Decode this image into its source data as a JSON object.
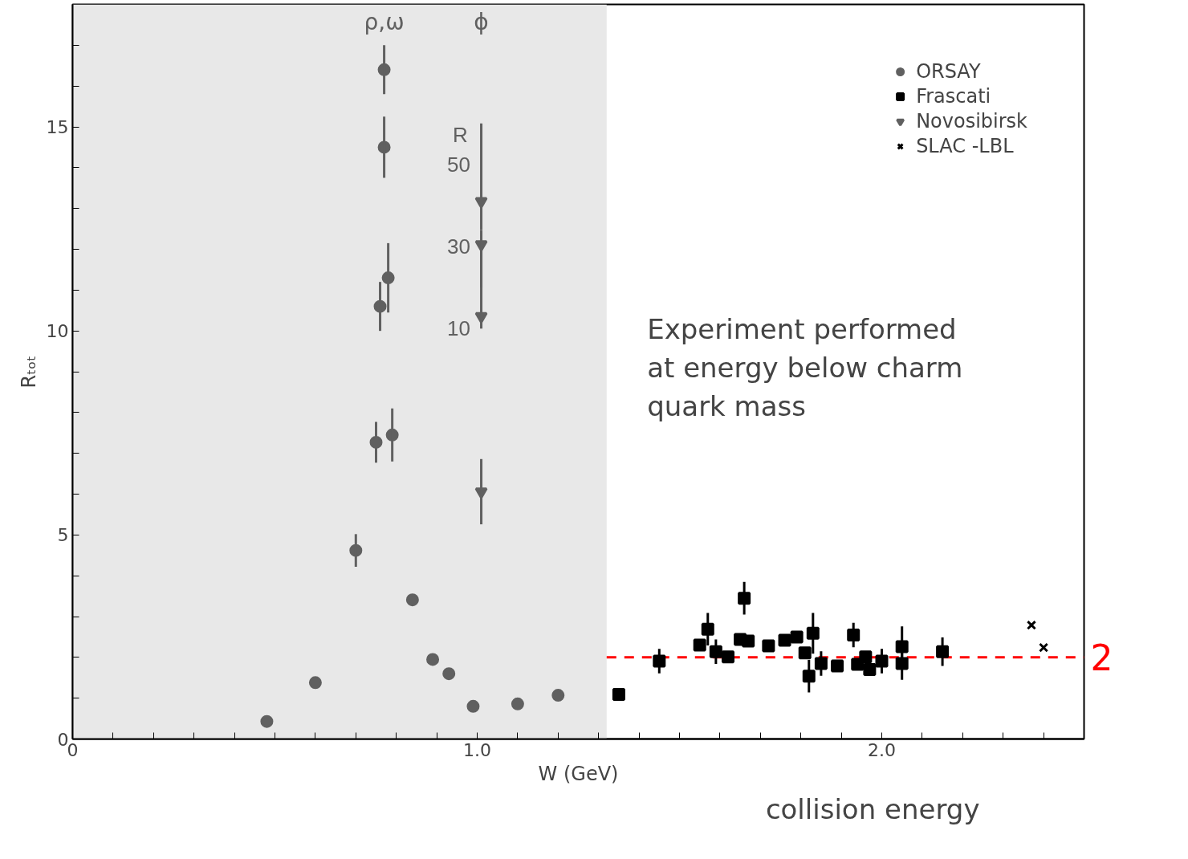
{
  "chart_data": {
    "type": "scatter",
    "xlabel": "W (GeV)",
    "ylabel": "Rₜₒₜ",
    "y2label": "R",
    "xlim": [
      0,
      2.5
    ],
    "ylim": [
      0,
      18
    ],
    "y2lim": [
      -90,
      89
    ],
    "xticks": [
      0,
      {
        "value": 0.1,
        "label": null
      },
      {
        "value": 0.2,
        "label": null
      },
      {
        "value": 0.3,
        "label": null
      },
      {
        "value": 0.4,
        "label": null
      },
      {
        "value": 0.5,
        "label": null
      },
      {
        "value": 0.6,
        "label": null
      },
      {
        "value": 0.7,
        "label": null
      },
      {
        "value": 0.8,
        "label": null
      },
      {
        "value": 0.9,
        "label": null
      },
      {
        "value": 1,
        "label": "1.0"
      },
      {
        "value": 1.1,
        "label": null
      },
      {
        "value": 1.2,
        "label": null
      },
      {
        "value": 1.3,
        "label": null
      },
      {
        "value": 1.4,
        "label": null
      },
      {
        "value": 1.5,
        "label": null
      },
      {
        "value": 1.6,
        "label": null
      },
      {
        "value": 1.7,
        "label": null
      },
      {
        "value": 1.8,
        "label": null
      },
      {
        "value": 1.9,
        "label": null
      },
      {
        "value": 2,
        "label": "2.0"
      },
      {
        "value": 2.1,
        "label": null
      },
      {
        "value": 2.2,
        "label": null
      },
      {
        "value": 2.3,
        "label": null
      },
      {
        "value": 2.4,
        "label": null
      }
    ],
    "yticks": [
      0,
      {
        "value": 1,
        "label": null
      },
      {
        "value": 2,
        "label": null
      },
      {
        "value": 3,
        "label": null
      },
      {
        "value": 4,
        "label": null
      },
      5,
      {
        "value": 6,
        "label": null
      },
      {
        "value": 7,
        "label": null
      },
      {
        "value": 8,
        "label": null
      },
      {
        "value": 9,
        "label": null
      },
      10,
      {
        "value": 11,
        "label": null
      },
      {
        "value": 12,
        "label": null
      },
      {
        "value": 13,
        "label": null
      },
      {
        "value": 14,
        "label": null
      },
      15,
      {
        "value": 16,
        "label": null
      },
      {
        "value": 17,
        "label": null
      }
    ],
    "y2ticks": [
      10,
      30,
      50
    ],
    "grid": false,
    "legend": "top right",
    "series": [
      {
        "name": "ORSAY",
        "marker": "circle",
        "color": "#606060",
        "x": [
          0.48,
          0.6,
          0.7,
          0.75,
          0.79,
          0.76,
          0.78,
          0.77,
          0.77,
          0.84,
          0.89,
          0.93,
          0.99,
          1.1,
          1.2
        ],
        "values": [
          0.43,
          1.38,
          4.62,
          7.27,
          7.45,
          10.6,
          11.3,
          14.5,
          16.4,
          3.41,
          1.95,
          1.6,
          0.8,
          0.86,
          1.07
        ],
        "errors": [
          null,
          null,
          0.4,
          0.5,
          0.65,
          0.6,
          0.85,
          0.75,
          0.6,
          null,
          null,
          null,
          null,
          null,
          null
        ]
      },
      {
        "name": "Frascati",
        "marker": "square",
        "color": "#000000",
        "x": [
          1.35,
          1.45,
          1.55,
          1.57,
          1.59,
          1.62,
          1.65,
          1.66,
          1.67,
          1.72,
          1.76,
          1.79,
          1.81,
          1.82,
          1.83,
          1.85,
          1.89,
          1.93,
          1.94,
          1.96,
          1.97,
          2.0,
          2.05,
          2.05,
          2.15
        ],
        "values": [
          1.09,
          1.91,
          2.3,
          2.69,
          2.14,
          2.01,
          2.44,
          3.45,
          2.4,
          2.28,
          2.42,
          2.5,
          2.11,
          1.54,
          2.59,
          1.85,
          1.79,
          2.55,
          1.83,
          2.01,
          1.7,
          1.91,
          2.26,
          1.85,
          2.14
        ],
        "errors": [
          null,
          0.3,
          null,
          0.4,
          0.3,
          null,
          null,
          0.4,
          null,
          null,
          null,
          null,
          null,
          0.4,
          0.5,
          0.3,
          null,
          0.3,
          null,
          null,
          null,
          0.3,
          0.5,
          0.4,
          0.35
        ]
      },
      {
        "name": "Novosibirsk",
        "marker": "triangle",
        "color": "#606060",
        "axis": "y2",
        "x": [
          1.01,
          1.01,
          1.01
        ],
        "values": [
          41,
          30.5,
          13
        ],
        "errors": [
          [
            34,
            60
          ],
          [
            20,
            34
          ],
          [
            10,
            30
          ]
        ]
      },
      {
        "marker": "triangle",
        "color": "#606060",
        "x": [
          1.01
        ],
        "values": [
          6.06
        ],
        "errors": [
          0.8
        ]
      },
      {
        "name": "SLAC -LBL",
        "marker": "cross",
        "color": "#000000",
        "x": [
          2.37,
          2.4
        ],
        "values": [
          2.79,
          2.24
        ]
      }
    ],
    "bands": [
      {
        "axis": "x",
        "from": 0,
        "to": 1.32,
        "color": "#e8e8e8",
        "label": "Experiment performed\nat energy below charm\nquark mass"
      }
    ],
    "ref_lines": [
      {
        "axis": "y",
        "value": 2,
        "label": "2",
        "color": "#ff0000",
        "line_style": "dashed"
      }
    ],
    "annotations": [
      "ρ,ω",
      "ϕ",
      "collision energy"
    ]
  }
}
